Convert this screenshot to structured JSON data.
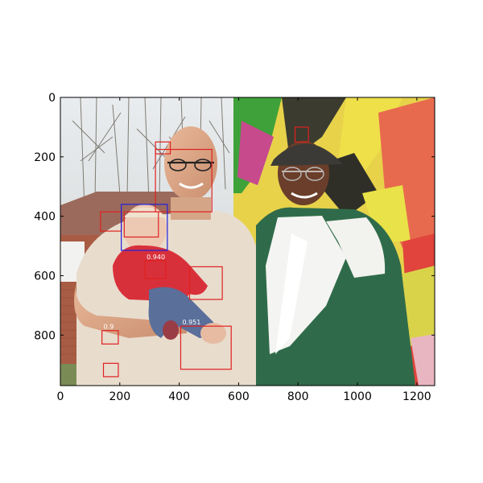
{
  "figure": {
    "image_extent": {
      "width": 1260,
      "height": 970
    },
    "x_ticks": [
      0,
      200,
      400,
      600,
      800,
      1000,
      1200
    ],
    "y_ticks": [
      0,
      200,
      400,
      600,
      800
    ],
    "colors": {
      "detection_box": "#e02020",
      "highlight_box": "#2020e0",
      "axes": "#000000"
    },
    "scene": "Photo: a bald man with glasses holding a baby in a red outfit, next to an older man in a cap and green-white jacket, in front of a colorful painted wall and bare trees.",
    "detections": [
      {
        "kind": "red",
        "x": 320,
        "y": 175,
        "w": 190,
        "h": 210,
        "label": ""
      },
      {
        "kind": "red",
        "x": 320,
        "y": 150,
        "w": 50,
        "h": 40,
        "label": ""
      },
      {
        "kind": "red",
        "x": 790,
        "y": 100,
        "w": 45,
        "h": 50,
        "label": ""
      },
      {
        "kind": "red",
        "x": 135,
        "y": 385,
        "w": 70,
        "h": 65,
        "label": ""
      },
      {
        "kind": "blue",
        "x": 205,
        "y": 360,
        "w": 155,
        "h": 155,
        "label": ""
      },
      {
        "kind": "red",
        "x": 215,
        "y": 385,
        "w": 115,
        "h": 85,
        "label": ""
      },
      {
        "kind": "red",
        "x": 285,
        "y": 550,
        "w": 70,
        "h": 60,
        "label": "0.940"
      },
      {
        "kind": "red",
        "x": 435,
        "y": 570,
        "w": 110,
        "h": 110,
        "label": ""
      },
      {
        "kind": "red",
        "x": 405,
        "y": 770,
        "w": 170,
        "h": 145,
        "label": "0.951"
      },
      {
        "kind": "red",
        "x": 140,
        "y": 785,
        "w": 55,
        "h": 45,
        "label": "0.9"
      },
      {
        "kind": "red",
        "x": 145,
        "y": 895,
        "w": 50,
        "h": 45,
        "label": ""
      }
    ]
  }
}
